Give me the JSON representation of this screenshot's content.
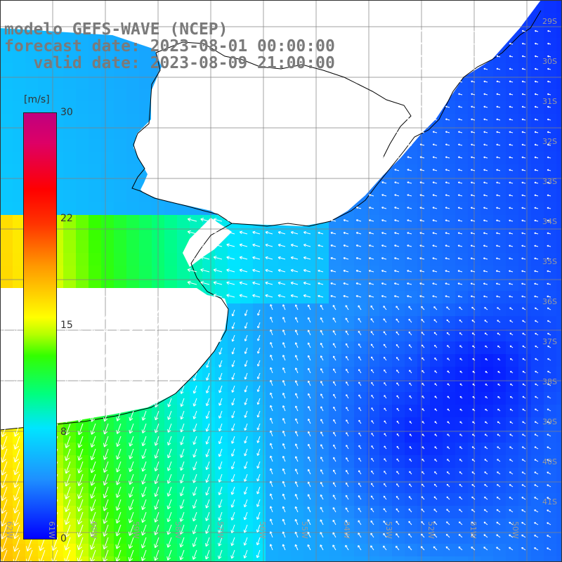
{
  "header": {
    "line1": "modelo GEFS-WAVE (NCEP)",
    "line2": "forecast date: 2023-08-01 00:00:00",
    "line3": "   valid date: 2023-08-09 21:00:00"
  },
  "colorbar": {
    "unit": "[m/s]",
    "ticks": [
      "30",
      "22",
      "15",
      "8",
      "0"
    ],
    "colors": [
      "#0000ff",
      "#1e90ff",
      "#00e5ff",
      "#00ff7f",
      "#33ff00",
      "#ffff00",
      "#ff9900",
      "#ff0000",
      "#c0007f"
    ]
  },
  "map": {
    "lat_labels": [
      "29S",
      "30S",
      "31S",
      "32S",
      "33S",
      "34S",
      "35S",
      "36S",
      "37S",
      "38S",
      "39S",
      "40S",
      "41S"
    ],
    "lon_labels": [
      "62W",
      "61W",
      "60W",
      "59W",
      "58W",
      "57W",
      "56W",
      "55W",
      "54W",
      "53W",
      "52W",
      "51W",
      "50W"
    ],
    "land_color": "#ffffff",
    "coast_color": "#000000",
    "grid_color": "#808080",
    "arrow_color": "#ffffff",
    "icons": [
      "wind-arrow-icon"
    ]
  }
}
